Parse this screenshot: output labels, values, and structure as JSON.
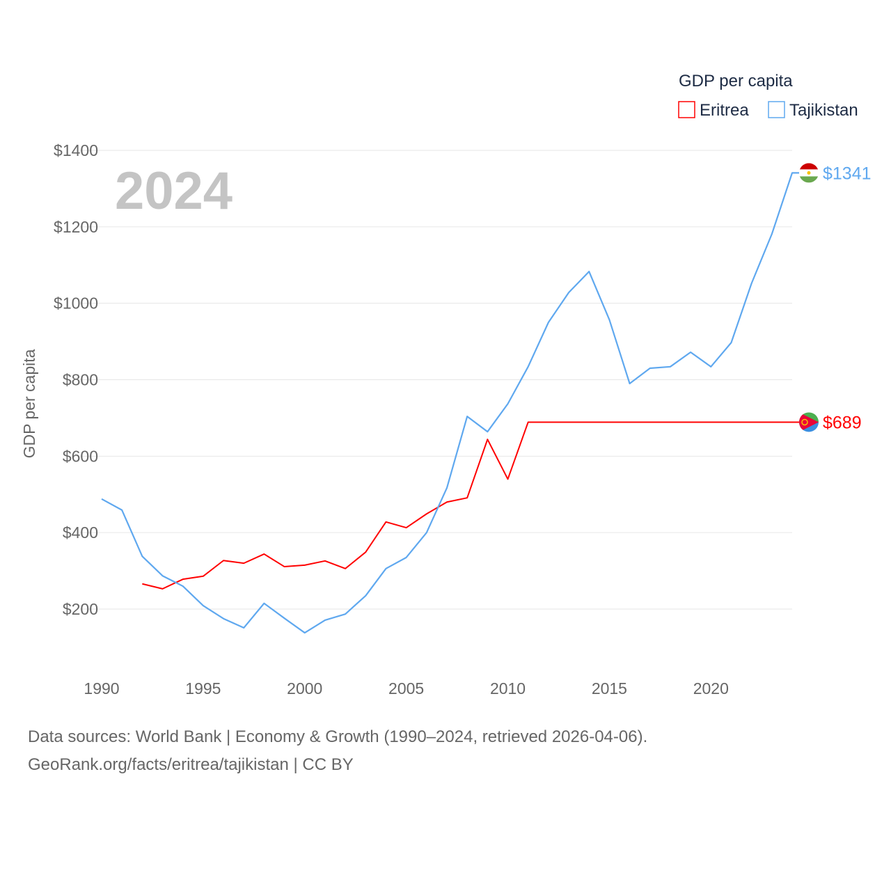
{
  "chart_data": {
    "type": "line",
    "title": "GDP per capita",
    "ylabel": "GDP per capita",
    "xlabel": "",
    "year_watermark": "2024",
    "ylim": [
      100,
      1400
    ],
    "xlim": [
      1990,
      2024
    ],
    "grid": true,
    "legend_placement": "top-right",
    "y_ticks": [
      200,
      400,
      600,
      800,
      1000,
      1200,
      1400
    ],
    "y_tick_labels": [
      "$200",
      "$400",
      "$600",
      "$800",
      "$1000",
      "$1200",
      "$1400"
    ],
    "x_ticks": [
      1990,
      1995,
      2000,
      2005,
      2010,
      2015,
      2020
    ],
    "x_tick_labels": [
      "1990",
      "1995",
      "2000",
      "2005",
      "2010",
      "2015",
      "2020"
    ],
    "series": [
      {
        "name": "Eritrea",
        "color": "#ff0000",
        "end_label": "$689",
        "x": [
          1992,
          1993,
          1994,
          1995,
          1996,
          1997,
          1998,
          1999,
          2000,
          2001,
          2002,
          2003,
          2004,
          2005,
          2006,
          2007,
          2008,
          2009,
          2010,
          2011,
          2012,
          2013,
          2014,
          2015,
          2016,
          2017,
          2018,
          2019,
          2020,
          2021,
          2022,
          2023,
          2024
        ],
        "values": [
          266,
          253,
          278,
          286,
          327,
          320,
          344,
          311,
          315,
          326,
          306,
          349,
          428,
          413,
          449,
          480,
          491,
          644,
          540,
          689,
          689,
          689,
          689,
          689,
          689,
          689,
          689,
          689,
          689,
          689,
          689,
          689,
          689
        ]
      },
      {
        "name": "Tajikistan",
        "color": "#5fa8ef",
        "end_label": "$1341",
        "x": [
          1990,
          1991,
          1992,
          1993,
          1994,
          1995,
          1996,
          1997,
          1998,
          1999,
          2000,
          2001,
          2002,
          2003,
          2004,
          2005,
          2006,
          2007,
          2008,
          2009,
          2010,
          2011,
          2012,
          2013,
          2014,
          2015,
          2016,
          2017,
          2018,
          2019,
          2020,
          2021,
          2022,
          2023,
          2024
        ],
        "values": [
          488,
          459,
          338,
          287,
          260,
          209,
          175,
          151,
          215,
          176,
          138,
          171,
          187,
          235,
          306,
          335,
          400,
          517,
          704,
          664,
          737,
          834,
          950,
          1028,
          1083,
          957,
          790,
          830,
          834,
          872,
          834,
          897,
          1052,
          1181,
          1341
        ]
      }
    ]
  },
  "footer": {
    "line1": "Data sources: World Bank | Economy & Growth (1990–2024, retrieved 2026-04-06).",
    "line2": "GeoRank.org/facts/eritrea/tajikistan | CC BY"
  }
}
